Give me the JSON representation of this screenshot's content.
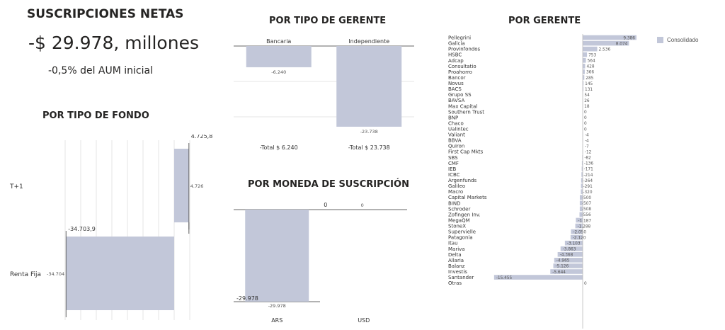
{
  "header": {
    "title": "SUSCRIPCIONES NETAS",
    "kpi_value": "-$ 29.978, millones",
    "kpi_sub": "-0,5% del AUM inicial"
  },
  "sections": {
    "fondo_title": "POR TIPO DE FONDO",
    "gerente_tipo_title": "POR TIPO DE GERENTE",
    "moneda_title": "POR MONEDA DE SUSCRIPCIÓN",
    "gerente_title": "POR GERENTE"
  },
  "colors": {
    "bar": "#c2c7d9",
    "grid": "#e6e6e6",
    "axis": "#666666"
  },
  "chart_data": [
    {
      "id": "fondo",
      "type": "bar",
      "categories": [
        "T+1",
        "Renta Fija"
      ],
      "values": [
        4726,
        -34704
      ],
      "value_labels": [
        "4.726",
        "-34.704"
      ],
      "total_labels": [
        "4.725,8",
        "-34.703,9"
      ],
      "ylim": [
        -35000,
        5000
      ]
    },
    {
      "id": "tipo_gerente",
      "type": "bar",
      "categories": [
        "Bancaria",
        "Independiente"
      ],
      "values": [
        -6240,
        -23738
      ],
      "value_labels": [
        "-6.240",
        "-23.738"
      ],
      "totals": [
        "-Total $ 6.240",
        "-Total $ 23.738"
      ],
      "ylim": [
        -25000,
        0
      ]
    },
    {
      "id": "moneda",
      "type": "bar",
      "categories": [
        "ARS",
        "USD"
      ],
      "values": [
        -29978,
        0
      ],
      "value_labels": [
        "-29.978",
        "0"
      ],
      "end_labels": [
        "-29.978",
        "0"
      ],
      "ylim": [
        -30000,
        0
      ]
    },
    {
      "id": "gerente",
      "type": "bar",
      "categories": [
        "Pellegrini",
        "Galicia",
        "Provinfondos",
        "HSBC",
        "Adcap",
        "Consultatio",
        "Proahorro",
        "Bancor",
        "Novus",
        "BACS",
        "Grupo SS",
        "BAVSA",
        "Max Capital",
        "Southern Trust",
        "BNP",
        "Chaco",
        "Ualintec",
        "Valiant",
        "BBVA",
        "Quiron",
        "First Cap Mkts",
        "SBS",
        "CMF",
        "IEB",
        "ICBC",
        "Argenfunds",
        "Galileo",
        "Macro",
        "Capital Markets",
        "BIND",
        "Schroder",
        "Zofingen Inv.",
        "MegaQM",
        "StoneX",
        "Supervielle",
        "Patagonia",
        "Itau",
        "Mariva",
        "Delta",
        "Allaria",
        "Balanz",
        "Investis",
        "Santander",
        "Otras"
      ],
      "values": [
        9386,
        8074,
        2536,
        753,
        564,
        428,
        366,
        285,
        145,
        131,
        54,
        26,
        18,
        0,
        0,
        0,
        0,
        -4,
        -4,
        -7,
        -12,
        -82,
        -136,
        -171,
        -214,
        -264,
        -291,
        -320,
        -500,
        -507,
        -508,
        -556,
        -1187,
        -1288,
        -2050,
        -2120,
        -3103,
        -3863,
        -4368,
        -4965,
        -5126,
        -5644,
        -15455,
        0
      ],
      "value_labels": [
        "9.386",
        "8.074",
        "2.536",
        "753",
        "564",
        "428",
        "366",
        "285",
        "145",
        "131",
        "54",
        "26",
        "18",
        "0",
        "0",
        "0",
        "0",
        "-4",
        "-4",
        "-7",
        "-12",
        "-82",
        "-136",
        "-171",
        "-214",
        "-264",
        "-291",
        "-320",
        "-500",
        "-507",
        "-508",
        "-556",
        "-1.187",
        "-1.288",
        "-2.050",
        "-2.120",
        "-3.103",
        "-3.863",
        "-4.368",
        "-4.965",
        "-5.126",
        "-5.644",
        "-15.455",
        "0"
      ],
      "legend": [
        "Consolidado"
      ],
      "legend_placement": "top-right",
      "xlim": [
        -16000,
        10000
      ]
    }
  ]
}
